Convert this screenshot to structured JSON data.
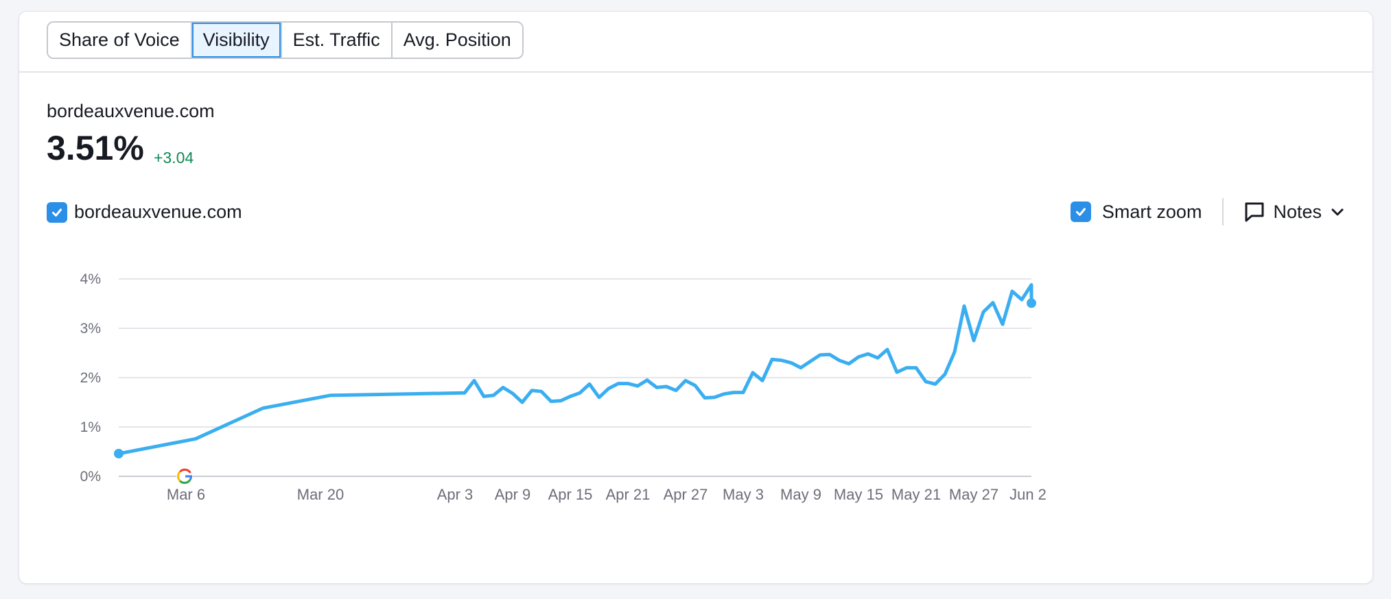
{
  "tabs": [
    {
      "label": "Share of Voice",
      "active": false
    },
    {
      "label": "Visibility",
      "active": true
    },
    {
      "label": "Est. Traffic",
      "active": false
    },
    {
      "label": "Avg. Position",
      "active": false
    }
  ],
  "summary": {
    "domain": "bordeauxvenue.com",
    "value": "3.51%",
    "delta": "+3.04"
  },
  "legend": {
    "label": "bordeauxvenue.com",
    "checked": true
  },
  "controls": {
    "smart_zoom_label": "Smart zoom",
    "smart_zoom_checked": true,
    "notes_label": "Notes"
  },
  "colors": {
    "line": "#3aaef0",
    "accent": "#2b8fe8",
    "positive": "#0f8a55",
    "grid": "#e3e5ea"
  },
  "chart_data": {
    "type": "line",
    "ylim": [
      0,
      4
    ],
    "y_ticks": [
      "0%",
      "1%",
      "2%",
      "3%",
      "4%"
    ],
    "x_ticks": [
      "Mar 6",
      "Mar 20",
      "Apr 3",
      "Apr 9",
      "Apr 15",
      "Apr 21",
      "Apr 27",
      "May 3",
      "May 9",
      "May 15",
      "May 21",
      "May 27",
      "Jun 2"
    ],
    "x_range": [
      "2025-02-27",
      "2025-06-02"
    ],
    "grid": true,
    "note_markers": [
      {
        "date": "2025-03-06",
        "icon": "google-update-icon"
      }
    ],
    "series": [
      {
        "name": "bordeauxvenue.com",
        "points": [
          [
            "2025-02-27",
            0.46
          ],
          [
            "2025-03-07",
            0.76
          ],
          [
            "2025-03-14",
            1.38
          ],
          [
            "2025-03-21",
            1.64
          ],
          [
            "2025-04-04",
            1.69
          ],
          [
            "2025-04-05",
            1.94
          ],
          [
            "2025-04-06",
            1.62
          ],
          [
            "2025-04-07",
            1.64
          ],
          [
            "2025-04-08",
            1.8
          ],
          [
            "2025-04-09",
            1.68
          ],
          [
            "2025-04-10",
            1.5
          ],
          [
            "2025-04-11",
            1.74
          ],
          [
            "2025-04-12",
            1.72
          ],
          [
            "2025-04-13",
            1.52
          ],
          [
            "2025-04-14",
            1.53
          ],
          [
            "2025-04-15",
            1.62
          ],
          [
            "2025-04-16",
            1.69
          ],
          [
            "2025-04-17",
            1.87
          ],
          [
            "2025-04-18",
            1.6
          ],
          [
            "2025-04-19",
            1.78
          ],
          [
            "2025-04-20",
            1.88
          ],
          [
            "2025-04-21",
            1.88
          ],
          [
            "2025-04-22",
            1.83
          ],
          [
            "2025-04-23",
            1.95
          ],
          [
            "2025-04-24",
            1.8
          ],
          [
            "2025-04-25",
            1.82
          ],
          [
            "2025-04-26",
            1.74
          ],
          [
            "2025-04-27",
            1.94
          ],
          [
            "2025-04-28",
            1.84
          ],
          [
            "2025-04-29",
            1.59
          ],
          [
            "2025-04-30",
            1.6
          ],
          [
            "2025-05-01",
            1.67
          ],
          [
            "2025-05-02",
            1.7
          ],
          [
            "2025-05-03",
            1.7
          ],
          [
            "2025-05-04",
            2.1
          ],
          [
            "2025-05-05",
            1.94
          ],
          [
            "2025-05-06",
            2.37
          ],
          [
            "2025-05-07",
            2.35
          ],
          [
            "2025-05-08",
            2.3
          ],
          [
            "2025-05-09",
            2.2
          ],
          [
            "2025-05-10",
            2.33
          ],
          [
            "2025-05-11",
            2.46
          ],
          [
            "2025-05-12",
            2.47
          ],
          [
            "2025-05-13",
            2.35
          ],
          [
            "2025-05-14",
            2.28
          ],
          [
            "2025-05-15",
            2.42
          ],
          [
            "2025-05-16",
            2.48
          ],
          [
            "2025-05-17",
            2.4
          ],
          [
            "2025-05-18",
            2.57
          ],
          [
            "2025-05-19",
            2.11
          ],
          [
            "2025-05-20",
            2.2
          ],
          [
            "2025-05-21",
            2.2
          ],
          [
            "2025-05-22",
            1.92
          ],
          [
            "2025-05-23",
            1.87
          ],
          [
            "2025-05-24",
            2.07
          ],
          [
            "2025-05-25",
            2.52
          ],
          [
            "2025-05-26",
            3.45
          ],
          [
            "2025-05-27",
            2.75
          ],
          [
            "2025-05-28",
            3.33
          ],
          [
            "2025-05-29",
            3.52
          ],
          [
            "2025-05-30",
            3.08
          ],
          [
            "2025-05-31",
            3.75
          ],
          [
            "2025-06-01",
            3.58
          ],
          [
            "2025-06-02",
            3.88
          ],
          [
            "2025-06-03",
            3.51
          ]
        ]
      }
    ]
  }
}
